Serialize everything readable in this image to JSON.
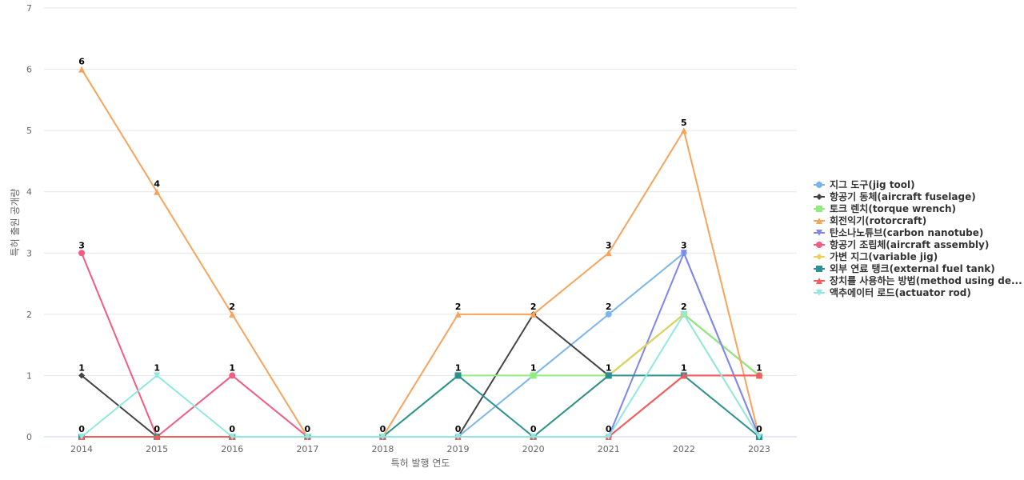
{
  "chart_data": {
    "type": "line",
    "xlabel": "특허 발행 연도",
    "ylabel": "특허 출원 공개량",
    "ylim": [
      0,
      7
    ],
    "yticks": [
      0,
      1,
      2,
      3,
      4,
      5,
      6,
      7
    ],
    "categories": [
      "2014",
      "2015",
      "2016",
      "2017",
      "2018",
      "2019",
      "2020",
      "2021",
      "2022",
      "2023"
    ],
    "grid": true,
    "legend_position": "right",
    "series": [
      {
        "name": "지그 도구(jig tool)",
        "color": "#7cb5ec",
        "marker": "circle",
        "values": [
          0,
          0,
          0,
          0,
          0,
          0,
          1,
          2,
          3,
          0
        ]
      },
      {
        "name": "항공기 동체(aircraft fuselage)",
        "color": "#434348",
        "marker": "diamond",
        "values": [
          1,
          0,
          0,
          0,
          0,
          0,
          2,
          1,
          2,
          1
        ]
      },
      {
        "name": "토크 렌치(torque wrench)",
        "color": "#90ed7d",
        "marker": "square",
        "values": [
          0,
          0,
          0,
          0,
          0,
          1,
          1,
          1,
          2,
          1
        ]
      },
      {
        "name": "회전익기(rotorcraft)",
        "color": "#f7a35c",
        "marker": "triangle",
        "values": [
          6,
          4,
          2,
          0,
          0,
          2,
          2,
          3,
          5,
          0
        ]
      },
      {
        "name": "탄소나노튜브(carbon nanotube)",
        "color": "#8085e9",
        "marker": "triangle-down",
        "values": [
          0,
          0,
          0,
          0,
          0,
          0,
          0,
          0,
          3,
          0
        ]
      },
      {
        "name": "항공기 조립체(aircraft assembly)",
        "color": "#f15c80",
        "marker": "circle",
        "values": [
          3,
          0,
          1,
          0,
          0,
          0,
          0,
          0,
          1,
          1
        ]
      },
      {
        "name": "가변 지그(variable jig)",
        "color": "#e4d354",
        "marker": "diamond",
        "values": [
          0,
          0,
          0,
          0,
          0,
          0,
          0,
          1,
          2,
          0
        ]
      },
      {
        "name": "외부 연료 탱크(external fuel tank)",
        "color": "#2b908f",
        "marker": "square",
        "values": [
          0,
          0,
          0,
          0,
          0,
          1,
          0,
          1,
          1,
          0
        ]
      },
      {
        "name": "장치를 사용하는 방법(method using de...",
        "color": "#f45b5b",
        "marker": "triangle",
        "values": [
          0,
          0,
          0,
          0,
          0,
          0,
          0,
          0,
          1,
          1
        ]
      },
      {
        "name": "액추에이터 로드(actuator rod)",
        "color": "#91e8e1",
        "marker": "triangle-down",
        "values": [
          0,
          1,
          0,
          0,
          0,
          0,
          0,
          0,
          2,
          0
        ]
      }
    ],
    "data_labels": [
      {
        "x": "2014",
        "value": 6
      },
      {
        "x": "2014",
        "value": 3
      },
      {
        "x": "2014",
        "value": 1
      },
      {
        "x": "2014",
        "value": 0
      },
      {
        "x": "2015",
        "value": 4
      },
      {
        "x": "2015",
        "value": 1
      },
      {
        "x": "2015",
        "value": 0
      },
      {
        "x": "2016",
        "value": 2
      },
      {
        "x": "2016",
        "value": 1
      },
      {
        "x": "2016",
        "value": 0
      },
      {
        "x": "2017",
        "value": 0
      },
      {
        "x": "2018",
        "value": 0
      },
      {
        "x": "2019",
        "value": 2
      },
      {
        "x": "2019",
        "value": 1
      },
      {
        "x": "2019",
        "value": 0
      },
      {
        "x": "2020",
        "value": 2
      },
      {
        "x": "2020",
        "value": 1
      },
      {
        "x": "2020",
        "value": 0
      },
      {
        "x": "2021",
        "value": 3
      },
      {
        "x": "2021",
        "value": 2
      },
      {
        "x": "2021",
        "value": 1
      },
      {
        "x": "2021",
        "value": 0
      },
      {
        "x": "2022",
        "value": 5
      },
      {
        "x": "2022",
        "value": 3
      },
      {
        "x": "2022",
        "value": 2
      },
      {
        "x": "2022",
        "value": 1
      },
      {
        "x": "2023",
        "value": 1
      },
      {
        "x": "2023",
        "value": 0
      }
    ]
  }
}
